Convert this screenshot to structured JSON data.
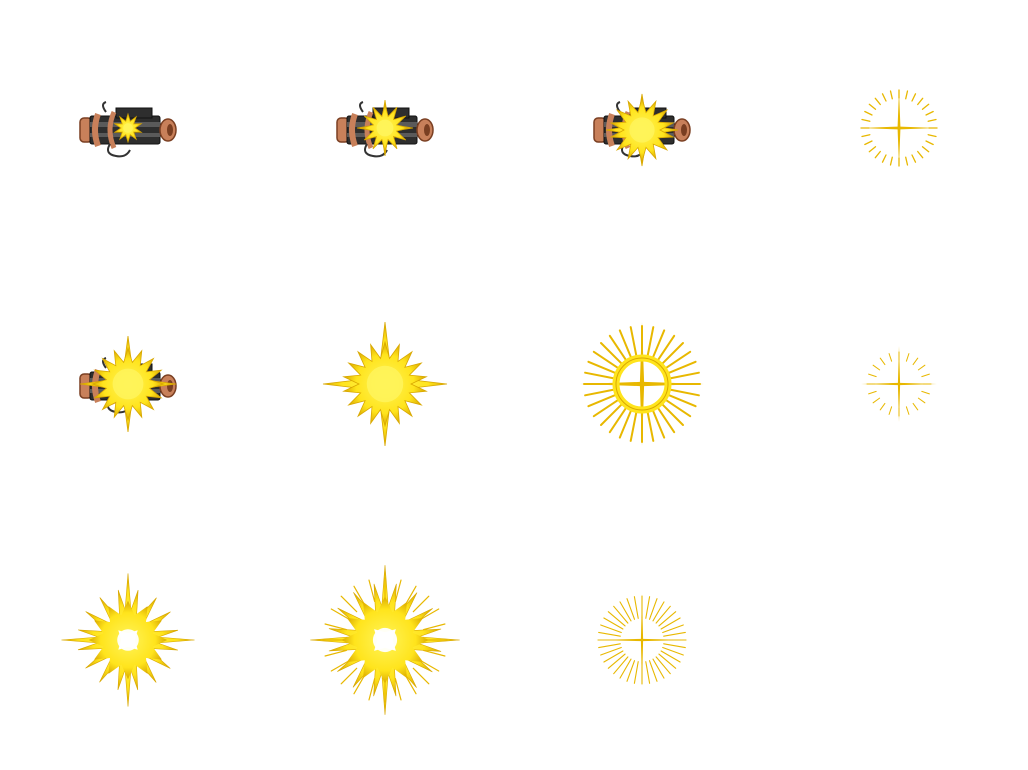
{
  "sprite_sheet": {
    "columns": 4,
    "rows": 3,
    "colors": {
      "flash_core": "#fff45a",
      "flash_mid": "#ffe41c",
      "flash_edge": "#d9a800",
      "ring": "#e8b800",
      "cannon_dark": "#2e2e2e",
      "cannon_mid": "#5a5a5a",
      "cannon_copper": "#c8805a",
      "cannon_copper_dark": "#7a3f22"
    },
    "frames": [
      {
        "id": 1,
        "cannon": true,
        "burst": "small-flash"
      },
      {
        "id": 2,
        "cannon": true,
        "burst": "medium-flash"
      },
      {
        "id": 3,
        "cannon": true,
        "burst": "large-flash"
      },
      {
        "id": 4,
        "cannon": false,
        "burst": "dashed-ring"
      },
      {
        "id": 5,
        "cannon": true,
        "burst": "big-flash"
      },
      {
        "id": 6,
        "cannon": false,
        "burst": "star-burst"
      },
      {
        "id": 7,
        "cannon": false,
        "burst": "spiked-ring"
      },
      {
        "id": 8,
        "cannon": false,
        "burst": "faint-ring"
      },
      {
        "id": 9,
        "cannon": false,
        "burst": "hollow-burst"
      },
      {
        "id": 10,
        "cannon": false,
        "burst": "hollow-burst-large"
      },
      {
        "id": 11,
        "cannon": false,
        "burst": "thin-ring"
      },
      {
        "id": 12,
        "cannon": false,
        "burst": "empty"
      }
    ]
  }
}
